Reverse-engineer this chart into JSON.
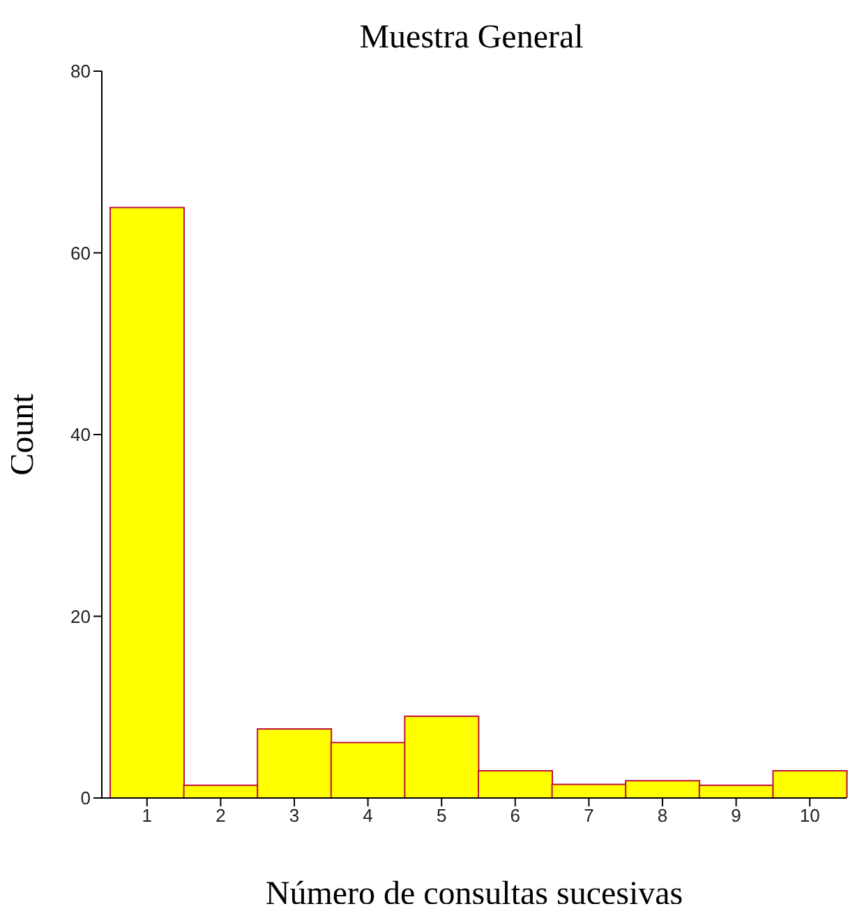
{
  "chart_data": {
    "type": "bar",
    "title": "Muestra General",
    "xlabel": "Número de consultas sucesivas",
    "ylabel": "Count",
    "categories": [
      "1",
      "2",
      "3",
      "4",
      "5",
      "6",
      "7",
      "8",
      "9",
      "10"
    ],
    "values": [
      65,
      1.4,
      7.6,
      6.1,
      9,
      3,
      1.5,
      1.9,
      1.4,
      3
    ],
    "color": "#ffff00",
    "ylim": [
      0,
      80
    ],
    "yticks": [
      0,
      20,
      40,
      60,
      80
    ],
    "grid": false,
    "legend": false
  }
}
